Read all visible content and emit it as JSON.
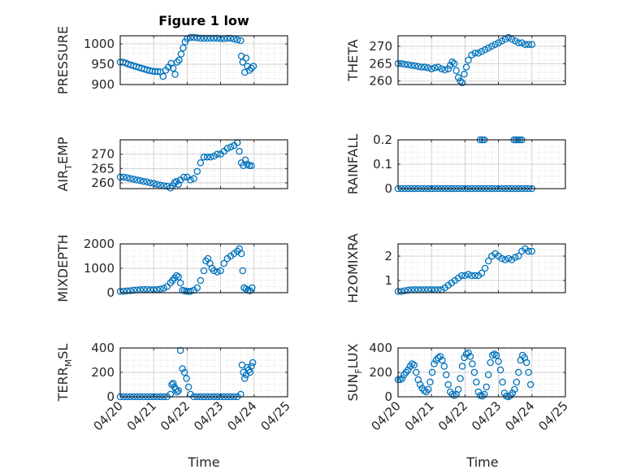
{
  "title": "Figure 1 low",
  "marker_color": "#0072BD",
  "x_tick_labels": [
    "04/20",
    "04/21",
    "04/22",
    "04/23",
    "04/24",
    "04/25"
  ],
  "x_label": "Time",
  "chart_data": [
    {
      "type": "scatter",
      "ylabel": "PRESSURE",
      "ylim": [
        900,
        1020
      ],
      "yticks": [
        900,
        950,
        1000
      ],
      "xlim": [
        0,
        5
      ],
      "grid": true,
      "x": [
        0,
        0.08,
        0.16,
        0.24,
        0.32,
        0.4,
        0.48,
        0.56,
        0.64,
        0.72,
        0.8,
        0.88,
        0.96,
        1.04,
        1.12,
        1.2,
        1.28,
        1.36,
        1.44,
        1.52,
        1.58,
        1.64,
        1.7,
        1.76,
        1.82,
        1.88,
        1.94,
        2.0,
        2.1,
        2.2,
        2.3,
        2.4,
        2.5,
        2.6,
        2.7,
        2.8,
        2.9,
        3.0,
        3.1,
        3.2,
        3.3,
        3.4,
        3.5,
        3.6,
        3.62,
        3.66,
        3.72,
        3.76,
        3.8,
        3.86,
        3.92,
        3.98
      ],
      "y": [
        955,
        955,
        953,
        950,
        948,
        946,
        944,
        942,
        940,
        938,
        936,
        934,
        933,
        932,
        932,
        931,
        920,
        935,
        943,
        952,
        940,
        925,
        955,
        960,
        975,
        990,
        1005,
        1013,
        1016,
        1016,
        1015,
        1014,
        1014,
        1014,
        1014,
        1014,
        1014,
        1013,
        1013,
        1014,
        1014,
        1012,
        1010,
        1008,
        970,
        955,
        930,
        965,
        945,
        935,
        940,
        945
      ]
    },
    {
      "type": "scatter",
      "ylabel": "THETA",
      "ylim": [
        259,
        273
      ],
      "yticks": [
        260,
        265,
        270
      ],
      "xlim": [
        0,
        5
      ],
      "grid": true,
      "x": [
        0,
        0.1,
        0.2,
        0.3,
        0.4,
        0.5,
        0.6,
        0.7,
        0.8,
        0.9,
        1.0,
        1.1,
        1.2,
        1.3,
        1.4,
        1.5,
        1.56,
        1.62,
        1.68,
        1.74,
        1.8,
        1.86,
        1.92,
        1.98,
        2.04,
        2.1,
        2.2,
        2.3,
        2.4,
        2.5,
        2.6,
        2.7,
        2.8,
        2.9,
        3.0,
        3.1,
        3.2,
        3.3,
        3.4,
        3.5,
        3.6,
        3.7,
        3.8,
        3.9,
        4.0
      ],
      "y": [
        265,
        265,
        264.8,
        264.7,
        264.5,
        264.4,
        264.2,
        264,
        264,
        263.8,
        263.5,
        263.8,
        264,
        263.5,
        263.2,
        263.5,
        264.5,
        265.5,
        265,
        263,
        261,
        260,
        259.5,
        262,
        264,
        266,
        267.5,
        268,
        268,
        268.5,
        269,
        269.5,
        270,
        270.5,
        271,
        271.5,
        272,
        272.5,
        272,
        271.5,
        271,
        271,
        270.5,
        270.5,
        270.5
      ]
    },
    {
      "type": "scatter",
      "ylabel": "AIR_TEMP",
      "ylim": [
        258,
        275
      ],
      "yticks": [
        260,
        265,
        270
      ],
      "xlim": [
        0,
        5
      ],
      "grid": true,
      "x": [
        0,
        0.1,
        0.2,
        0.3,
        0.4,
        0.5,
        0.6,
        0.7,
        0.8,
        0.9,
        1.0,
        1.1,
        1.2,
        1.3,
        1.4,
        1.5,
        1.56,
        1.62,
        1.68,
        1.74,
        1.8,
        1.9,
        2.0,
        2.1,
        2.2,
        2.3,
        2.4,
        2.5,
        2.6,
        2.7,
        2.8,
        2.9,
        3.0,
        3.1,
        3.2,
        3.3,
        3.4,
        3.5,
        3.56,
        3.62,
        3.68,
        3.74,
        3.8,
        3.86,
        3.92
      ],
      "y": [
        262,
        262,
        261.8,
        261.5,
        261.3,
        261,
        260.8,
        260.5,
        260.3,
        260,
        259.8,
        259.5,
        259.2,
        259,
        258.8,
        258.2,
        259,
        260,
        260.5,
        259.5,
        261,
        262,
        262,
        261,
        261.5,
        264,
        267,
        269,
        269,
        269,
        269.3,
        270,
        270,
        271,
        272,
        272.5,
        273,
        274,
        271,
        267,
        266,
        268,
        266.5,
        266,
        266
      ]
    },
    {
      "type": "scatter",
      "ylabel": "RAINFALL",
      "ylim": [
        0,
        0.2
      ],
      "yticks": [
        0,
        0.1,
        0.2
      ],
      "xlim": [
        0,
        5
      ],
      "grid": true,
      "x": [
        0,
        0.1,
        0.2,
        0.3,
        0.4,
        0.5,
        0.6,
        0.7,
        0.8,
        0.9,
        1.0,
        1.1,
        1.2,
        1.3,
        1.4,
        1.5,
        1.6,
        1.7,
        1.8,
        1.9,
        2.0,
        2.1,
        2.2,
        2.3,
        2.4,
        2.5,
        2.6,
        2.7,
        2.8,
        2.9,
        3.0,
        3.1,
        3.2,
        3.3,
        3.4,
        3.5,
        3.6,
        3.7,
        3.8,
        3.9,
        4.0,
        2.45,
        2.52,
        2.58,
        3.46,
        3.52,
        3.58,
        3.64,
        3.7
      ],
      "y": [
        0,
        0,
        0,
        0,
        0,
        0,
        0,
        0,
        0,
        0,
        0,
        0,
        0,
        0,
        0,
        0,
        0,
        0,
        0,
        0,
        0,
        0,
        0,
        0,
        0,
        0,
        0,
        0,
        0,
        0,
        0,
        0,
        0,
        0,
        0,
        0,
        0,
        0,
        0,
        0,
        0,
        0.2,
        0.2,
        0.2,
        0.2,
        0.2,
        0.2,
        0.2,
        0.2
      ]
    },
    {
      "type": "scatter",
      "ylabel": "MIXDEPTH",
      "ylim": [
        0,
        2000
      ],
      "yticks": [
        0,
        1000,
        2000
      ],
      "xlim": [
        0,
        5
      ],
      "grid": true,
      "x": [
        0,
        0.1,
        0.2,
        0.3,
        0.4,
        0.5,
        0.6,
        0.7,
        0.8,
        0.9,
        1.0,
        1.1,
        1.2,
        1.3,
        1.4,
        1.5,
        1.56,
        1.62,
        1.68,
        1.74,
        1.8,
        1.86,
        1.92,
        1.98,
        2.04,
        2.1,
        2.2,
        2.3,
        2.4,
        2.5,
        2.56,
        2.62,
        2.68,
        2.74,
        2.8,
        2.9,
        3.0,
        3.1,
        3.2,
        3.3,
        3.4,
        3.5,
        3.56,
        3.62,
        3.66,
        3.7,
        3.76,
        3.82,
        3.88,
        3.94
      ],
      "y": [
        50,
        60,
        70,
        80,
        100,
        110,
        120,
        130,
        130,
        120,
        120,
        130,
        150,
        180,
        250,
        400,
        500,
        600,
        700,
        650,
        400,
        100,
        80,
        60,
        50,
        60,
        100,
        200,
        500,
        900,
        1300,
        1400,
        1200,
        1000,
        900,
        850,
        900,
        1200,
        1400,
        1500,
        1600,
        1700,
        1800,
        1600,
        900,
        200,
        150,
        100,
        80,
        200
      ]
    },
    {
      "type": "scatter",
      "ylabel": "H2OMIXRA",
      "ylim": [
        0.5,
        2.5
      ],
      "yticks": [
        1,
        2
      ],
      "xlim": [
        0,
        5
      ],
      "grid": true,
      "x": [
        0,
        0.1,
        0.2,
        0.3,
        0.4,
        0.5,
        0.6,
        0.7,
        0.8,
        0.9,
        1.0,
        1.1,
        1.2,
        1.3,
        1.4,
        1.5,
        1.6,
        1.7,
        1.8,
        1.9,
        2.0,
        2.1,
        2.2,
        2.3,
        2.4,
        2.5,
        2.6,
        2.7,
        2.8,
        2.9,
        3.0,
        3.1,
        3.2,
        3.3,
        3.4,
        3.5,
        3.6,
        3.7,
        3.8,
        3.9,
        4.0
      ],
      "y": [
        0.55,
        0.55,
        0.58,
        0.6,
        0.62,
        0.62,
        0.62,
        0.62,
        0.62,
        0.62,
        0.62,
        0.62,
        0.62,
        0.62,
        0.7,
        0.8,
        0.9,
        1.0,
        1.1,
        1.2,
        1.2,
        1.25,
        1.2,
        1.2,
        1.2,
        1.3,
        1.5,
        1.8,
        2.0,
        2.1,
        2.0,
        1.9,
        1.85,
        1.9,
        1.85,
        1.95,
        2.0,
        2.2,
        2.3,
        2.2,
        2.2
      ]
    },
    {
      "type": "scatter",
      "ylabel": "TERR_MSL",
      "ylim": [
        0,
        400
      ],
      "yticks": [
        0,
        200,
        400
      ],
      "xlim": [
        0,
        5
      ],
      "grid": true,
      "x": [
        0,
        0.1,
        0.2,
        0.3,
        0.4,
        0.5,
        0.6,
        0.7,
        0.8,
        0.9,
        1.0,
        1.1,
        1.2,
        1.3,
        1.4,
        1.5,
        1.54,
        1.58,
        1.62,
        1.66,
        1.7,
        1.74,
        1.8,
        1.86,
        1.92,
        1.98,
        2.04,
        2.1,
        2.2,
        2.3,
        2.4,
        2.5,
        2.6,
        2.7,
        2.8,
        2.9,
        3.0,
        3.1,
        3.2,
        3.3,
        3.4,
        3.5,
        3.6,
        3.64,
        3.68,
        3.72,
        3.76,
        3.8,
        3.84,
        3.88,
        3.92,
        3.96
      ],
      "y": [
        0,
        0,
        0,
        0,
        0,
        0,
        0,
        0,
        0,
        0,
        0,
        0,
        0,
        0,
        0,
        20,
        100,
        110,
        80,
        60,
        40,
        50,
        380,
        230,
        200,
        150,
        80,
        20,
        0,
        0,
        0,
        0,
        0,
        0,
        0,
        0,
        0,
        0,
        0,
        0,
        0,
        0,
        20,
        260,
        200,
        150,
        180,
        240,
        220,
        200,
        250,
        280
      ]
    },
    {
      "type": "scatter",
      "ylabel": "SUN_FLUX",
      "ylim": [
        0,
        400
      ],
      "yticks": [
        0,
        200,
        400
      ],
      "xlim": [
        0,
        5
      ],
      "grid": true,
      "x": [
        0,
        0.06,
        0.12,
        0.18,
        0.24,
        0.3,
        0.36,
        0.42,
        0.48,
        0.54,
        0.6,
        0.66,
        0.72,
        0.78,
        0.84,
        0.9,
        0.96,
        1.02,
        1.08,
        1.14,
        1.2,
        1.26,
        1.32,
        1.38,
        1.44,
        1.5,
        1.56,
        1.62,
        1.68,
        1.74,
        1.8,
        1.86,
        1.92,
        1.98,
        2.04,
        2.1,
        2.16,
        2.22,
        2.28,
        2.34,
        2.4,
        2.46,
        2.52,
        2.58,
        2.64,
        2.7,
        2.76,
        2.82,
        2.88,
        2.94,
        3.0,
        3.06,
        3.12,
        3.18,
        3.24,
        3.3,
        3.36,
        3.42,
        3.48,
        3.54,
        3.6,
        3.66,
        3.72,
        3.78,
        3.84,
        3.9,
        3.96
      ],
      "y": [
        140,
        140,
        150,
        180,
        200,
        220,
        250,
        270,
        260,
        200,
        140,
        100,
        70,
        50,
        40,
        60,
        120,
        200,
        270,
        300,
        320,
        330,
        300,
        250,
        180,
        100,
        40,
        20,
        10,
        20,
        60,
        150,
        250,
        320,
        350,
        360,
        330,
        270,
        200,
        120,
        40,
        10,
        5,
        20,
        80,
        180,
        280,
        340,
        350,
        340,
        290,
        220,
        120,
        30,
        5,
        0,
        10,
        30,
        60,
        120,
        200,
        300,
        340,
        320,
        280,
        200,
        100
      ]
    }
  ]
}
